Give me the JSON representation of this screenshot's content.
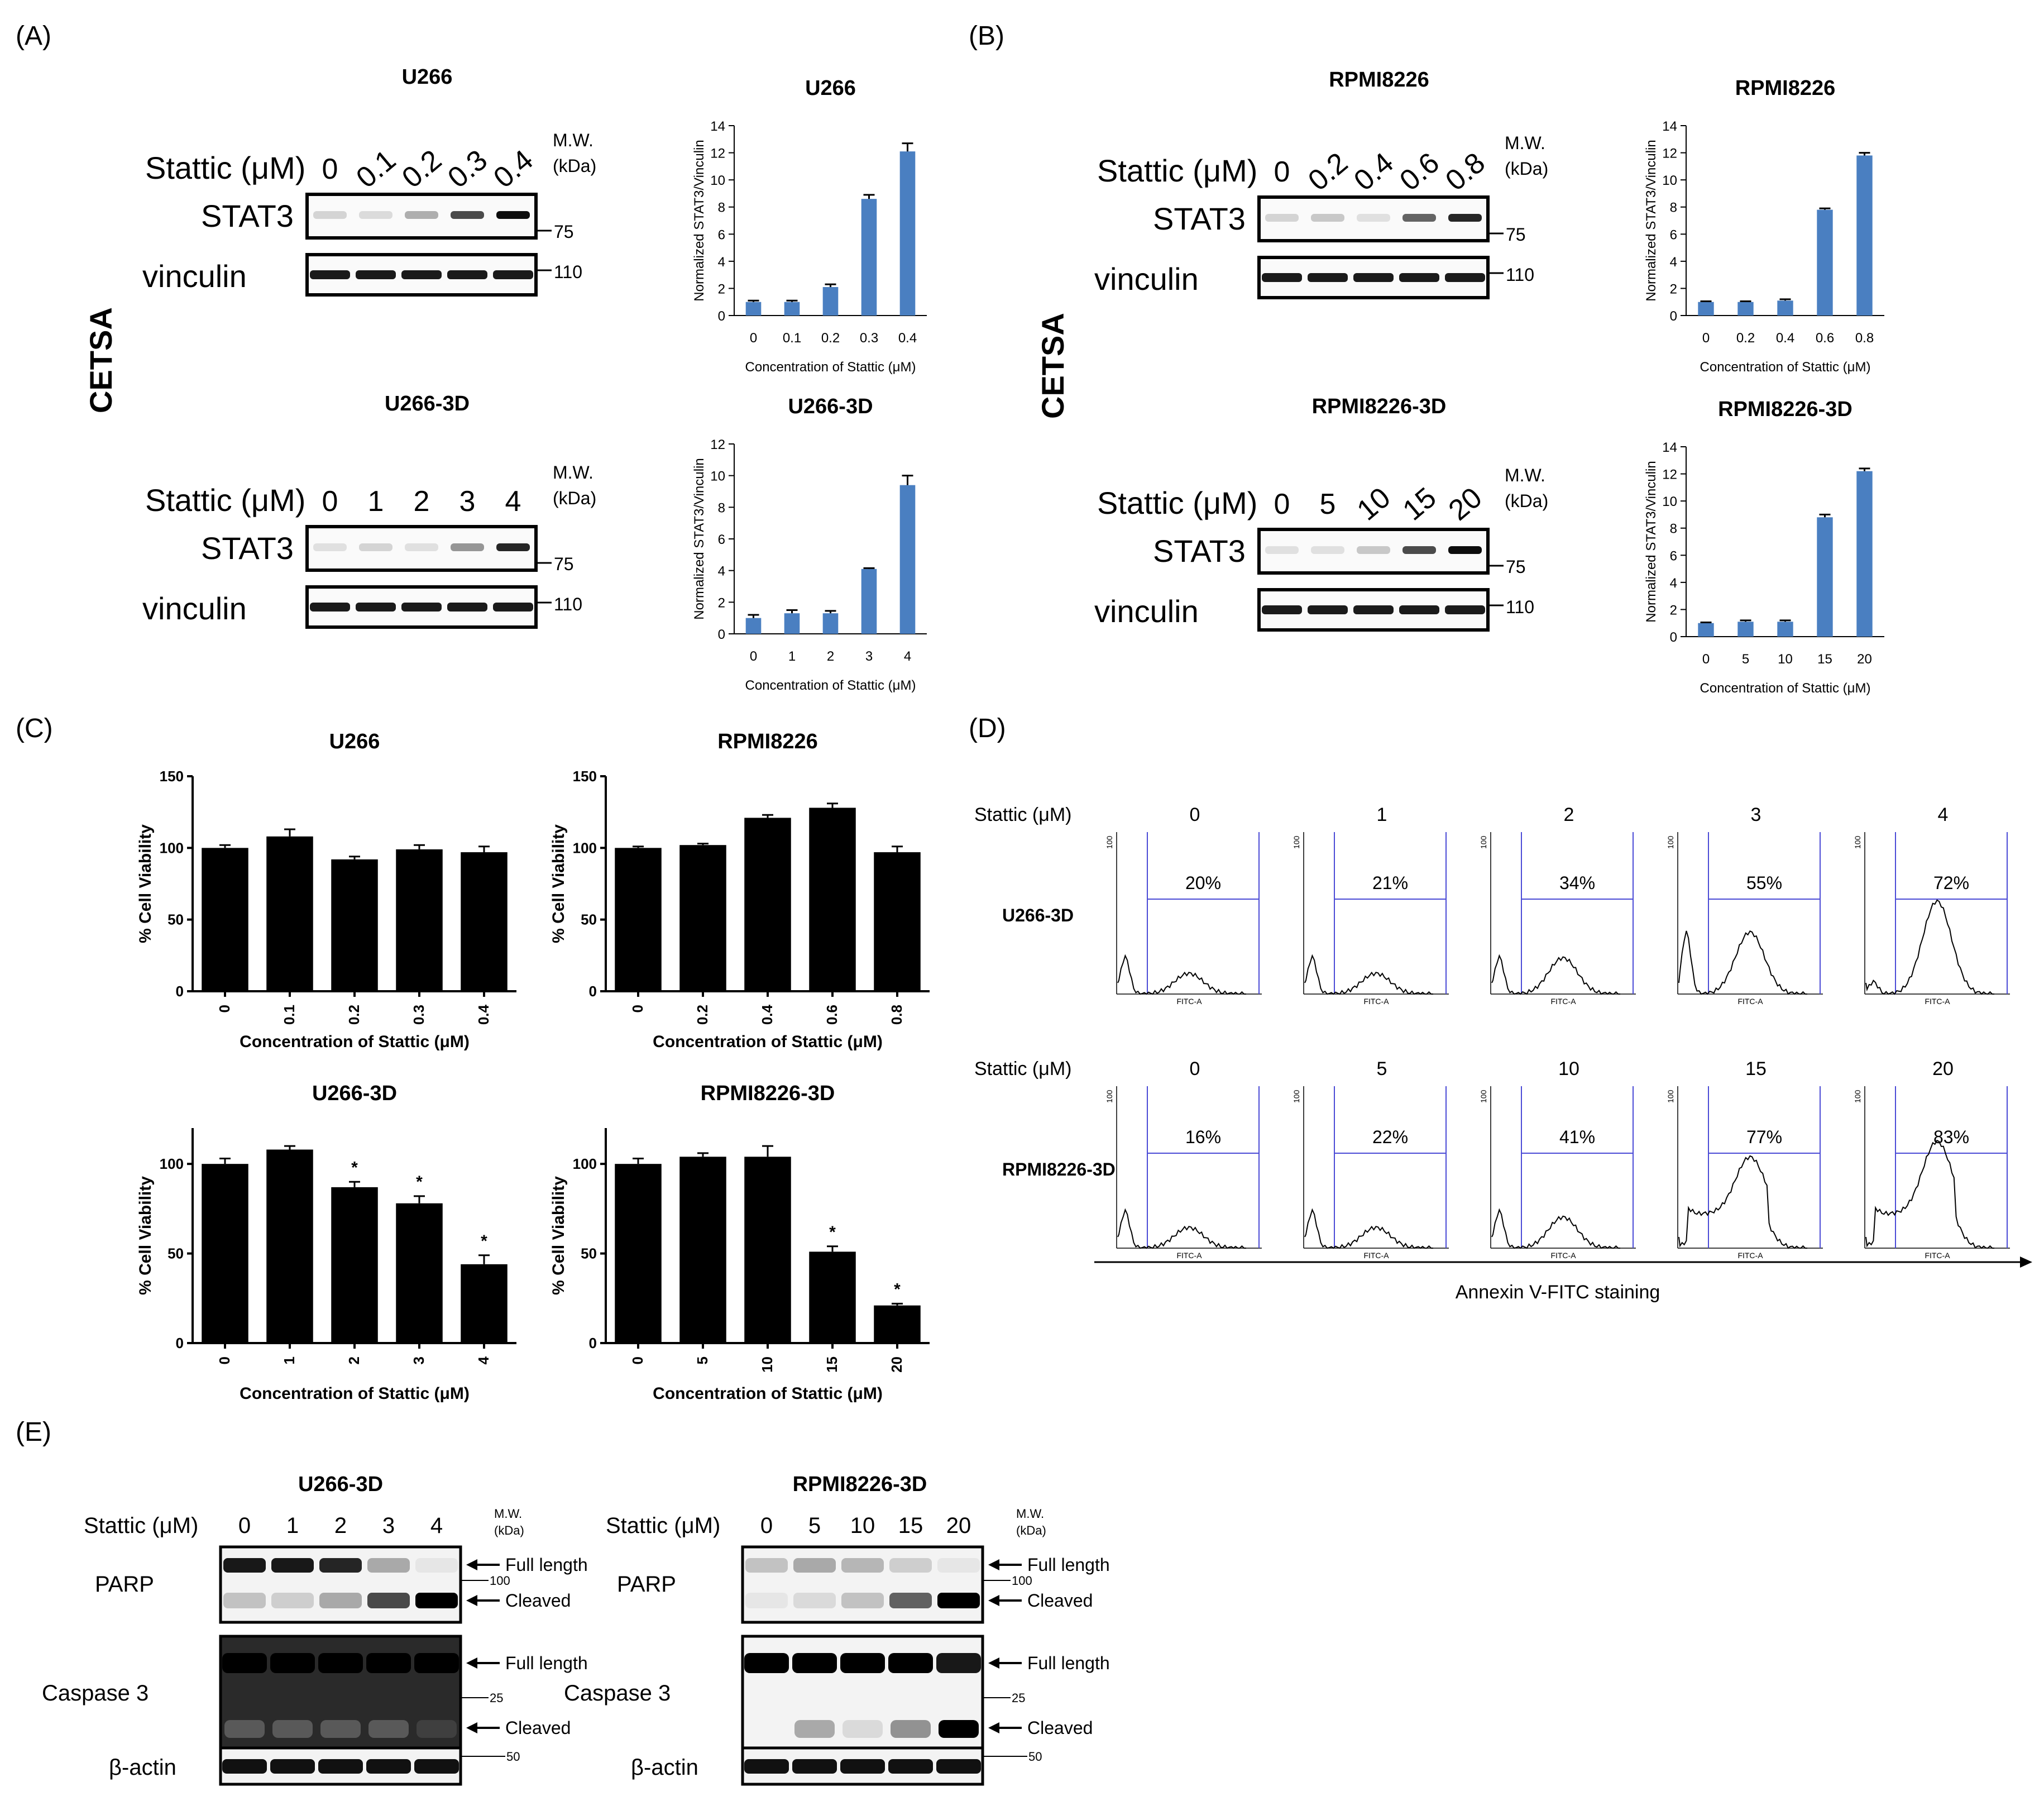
{
  "panel_labels": [
    "(A)",
    "(B)",
    "(C)",
    "(D)",
    "(E)"
  ],
  "cetsa_label": "CETSA",
  "treatment_label": "Stattic (μM)",
  "mw_label_line1": "M.W.",
  "mw_label_line2": "(kDa)",
  "gel_row_labels": [
    "STAT3",
    "vinculin"
  ],
  "mw_markers": {
    "stat3": "75",
    "vinculin": "110"
  },
  "cetsa_blots": [
    {
      "title": "U266",
      "lanes": [
        "0",
        "0.1",
        "0.2",
        "0.3",
        "0.4"
      ]
    },
    {
      "title": "U266-3D",
      "lanes": [
        "0",
        "1",
        "2",
        "3",
        "4"
      ]
    },
    {
      "title": "RPMI8226",
      "lanes": [
        "0",
        "0.2",
        "0.4",
        "0.6",
        "0.8"
      ]
    },
    {
      "title": "RPMI8226-3D",
      "lanes": [
        "0",
        "5",
        "10",
        "15",
        "20"
      ]
    }
  ],
  "chart_data": [
    {
      "panel": "A",
      "type": "bar",
      "title": "U266",
      "categories": [
        "0",
        "0.1",
        "0.2",
        "0.3",
        "0.4"
      ],
      "values": [
        1.0,
        1.0,
        2.1,
        8.6,
        12.1
      ],
      "errors": [
        0.1,
        0.1,
        0.2,
        0.3,
        0.6
      ],
      "xlabel": "Concentration of Stattic (μM)",
      "ylabel": "Normalized STAT3/Vinculin",
      "ylim": [
        0,
        14
      ],
      "yticks": [
        0,
        2,
        4,
        6,
        8,
        10,
        12,
        14
      ],
      "color": "#4a7fc1"
    },
    {
      "panel": "A",
      "type": "bar",
      "title": "U266-3D",
      "categories": [
        "0",
        "1",
        "2",
        "3",
        "4"
      ],
      "values": [
        1.0,
        1.3,
        1.3,
        4.1,
        9.4
      ],
      "errors": [
        0.2,
        0.2,
        0.15,
        0.05,
        0.6
      ],
      "xlabel": "Concentration of Stattic (μM)",
      "ylabel": "Normalized STAT3/Vinculin",
      "ylim": [
        0,
        12
      ],
      "yticks": [
        0,
        2,
        4,
        6,
        8,
        10,
        12
      ],
      "color": "#4a7fc1"
    },
    {
      "panel": "B",
      "type": "bar",
      "title": "RPMI8226",
      "categories": [
        "0",
        "0.2",
        "0.4",
        "0.6",
        "0.8"
      ],
      "values": [
        1.0,
        1.0,
        1.1,
        7.8,
        11.8
      ],
      "errors": [
        0.05,
        0.05,
        0.1,
        0.1,
        0.2
      ],
      "xlabel": "Concentration of Stattic (μM)",
      "ylabel": "Normalized STAT3/Vinculin",
      "ylim": [
        0,
        14
      ],
      "yticks": [
        0,
        2,
        4,
        6,
        8,
        10,
        12,
        14
      ],
      "color": "#4a7fc1"
    },
    {
      "panel": "B",
      "type": "bar",
      "title": "RPMI8226-3D",
      "categories": [
        "0",
        "5",
        "10",
        "15",
        "20"
      ],
      "values": [
        1.0,
        1.1,
        1.1,
        8.8,
        12.2
      ],
      "errors": [
        0.05,
        0.1,
        0.1,
        0.2,
        0.2
      ],
      "xlabel": "Concentration of Stattic (μM)",
      "ylabel": "Normalized STAT3/Vinculin",
      "ylim": [
        0,
        14
      ],
      "yticks": [
        0,
        2,
        4,
        6,
        8,
        10,
        12,
        14
      ],
      "color": "#4a7fc1"
    },
    {
      "panel": "C",
      "type": "bar",
      "title": "U266",
      "categories": [
        "0",
        "0.1",
        "0.2",
        "0.3",
        "0.4"
      ],
      "values": [
        100,
        108,
        92,
        99,
        97
      ],
      "errors": [
        2,
        5,
        2,
        3,
        4
      ],
      "stars": [
        "",
        "",
        "",
        "",
        ""
      ],
      "xlabel": "Concentration of Stattic (μM)",
      "ylabel": "% Cell Viability",
      "ylim": [
        0,
        150
      ],
      "yticks": [
        0,
        50,
        100,
        150
      ],
      "color": "#000000"
    },
    {
      "panel": "C",
      "type": "bar",
      "title": "RPMI8226",
      "categories": [
        "0",
        "0.2",
        "0.4",
        "0.6",
        "0.8"
      ],
      "values": [
        100,
        102,
        121,
        128,
        97
      ],
      "errors": [
        1,
        1,
        2,
        3,
        4
      ],
      "stars": [
        "",
        "",
        "",
        "",
        ""
      ],
      "xlabel": "Concentration of Stattic (μM)",
      "ylabel": "% Cell Viability",
      "ylim": [
        0,
        150
      ],
      "yticks": [
        0,
        50,
        100,
        150
      ],
      "color": "#000000"
    },
    {
      "panel": "C",
      "type": "bar",
      "title": "U266-3D",
      "categories": [
        "0",
        "1",
        "2",
        "3",
        "4"
      ],
      "values": [
        100,
        108,
        87,
        78,
        44
      ],
      "errors": [
        3,
        2,
        3,
        4,
        5
      ],
      "stars": [
        "",
        "",
        "*",
        "*",
        "*"
      ],
      "xlabel": "Concentration of Stattic (μM)",
      "ylabel": "% Cell Viability",
      "ylim": [
        0,
        120
      ],
      "yticks": [
        0,
        50,
        100
      ],
      "color": "#000000"
    },
    {
      "panel": "C",
      "type": "bar",
      "title": "RPMI8226-3D",
      "categories": [
        "0",
        "5",
        "10",
        "15",
        "20"
      ],
      "values": [
        100,
        104,
        104,
        51,
        21
      ],
      "errors": [
        3,
        2,
        6,
        3,
        1
      ],
      "stars": [
        "",
        "",
        "",
        "*",
        "*"
      ],
      "xlabel": "Concentration of Stattic (μM)",
      "ylabel": "% Cell Viability",
      "ylim": [
        0,
        120
      ],
      "yticks": [
        0,
        50,
        100
      ],
      "color": "#000000"
    }
  ],
  "flow": {
    "label": "Stattic (μM)",
    "rows": [
      {
        "cell_line": "U266-3D",
        "doses": [
          "0",
          "1",
          "2",
          "3",
          "4"
        ],
        "percents": [
          "20%",
          "21%",
          "34%",
          "55%",
          "72%"
        ]
      },
      {
        "cell_line": "RPMI8226-3D",
        "doses": [
          "0",
          "5",
          "10",
          "15",
          "20"
        ],
        "percents": [
          "16%",
          "22%",
          "41%",
          "77%",
          "83%"
        ]
      }
    ],
    "y_tick": "100",
    "x_axis_tiny": "FITC-A",
    "x_label": "Annexin V-FITC staining"
  },
  "panel_e": {
    "blots": [
      {
        "title": "U266-3D",
        "lanes": [
          "0",
          "1",
          "2",
          "3",
          "4"
        ]
      },
      {
        "title": "RPMI8226-3D",
        "lanes": [
          "0",
          "5",
          "10",
          "15",
          "20"
        ]
      }
    ],
    "row_labels": [
      "PARP",
      "Caspase 3",
      "β-actin"
    ],
    "annotations": {
      "full": "Full length",
      "cleaved": "Cleaved"
    },
    "markers": {
      "parp": "100",
      "casp": "25",
      "actin": "50"
    }
  }
}
